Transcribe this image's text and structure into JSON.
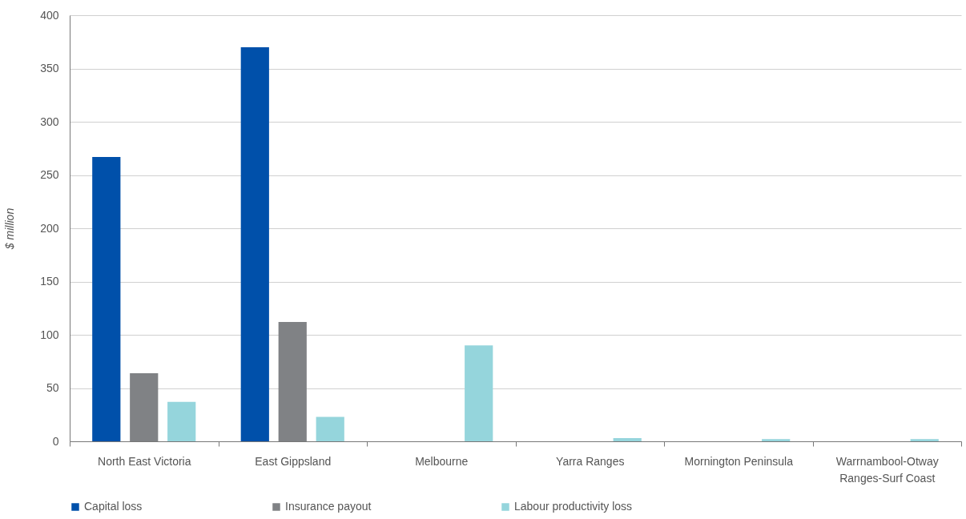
{
  "chart_data": {
    "type": "bar",
    "ylabel": "$ million",
    "categories": [
      "North East Victoria",
      "East Gippsland",
      "Melbourne",
      "Yarra Ranges",
      "Mornington Peninsula",
      "Warrnambool-Otway Ranges-Surf Coast"
    ],
    "series": [
      {
        "name": "Capital loss",
        "color": "#0050aa",
        "values": [
          267,
          370,
          0,
          0,
          0,
          0
        ]
      },
      {
        "name": "Insurance payout",
        "color": "#808285",
        "values": [
          64,
          112,
          0,
          0,
          0,
          0
        ]
      },
      {
        "name": "Labour productivity loss",
        "color": "#95d5dc",
        "values": [
          37,
          23,
          90,
          3,
          2,
          2
        ]
      }
    ],
    "ylim": [
      0,
      400
    ],
    "yticks": [
      0,
      50,
      100,
      150,
      200,
      250,
      300,
      350,
      400
    ],
    "grid": "y",
    "legend": "bottom"
  }
}
